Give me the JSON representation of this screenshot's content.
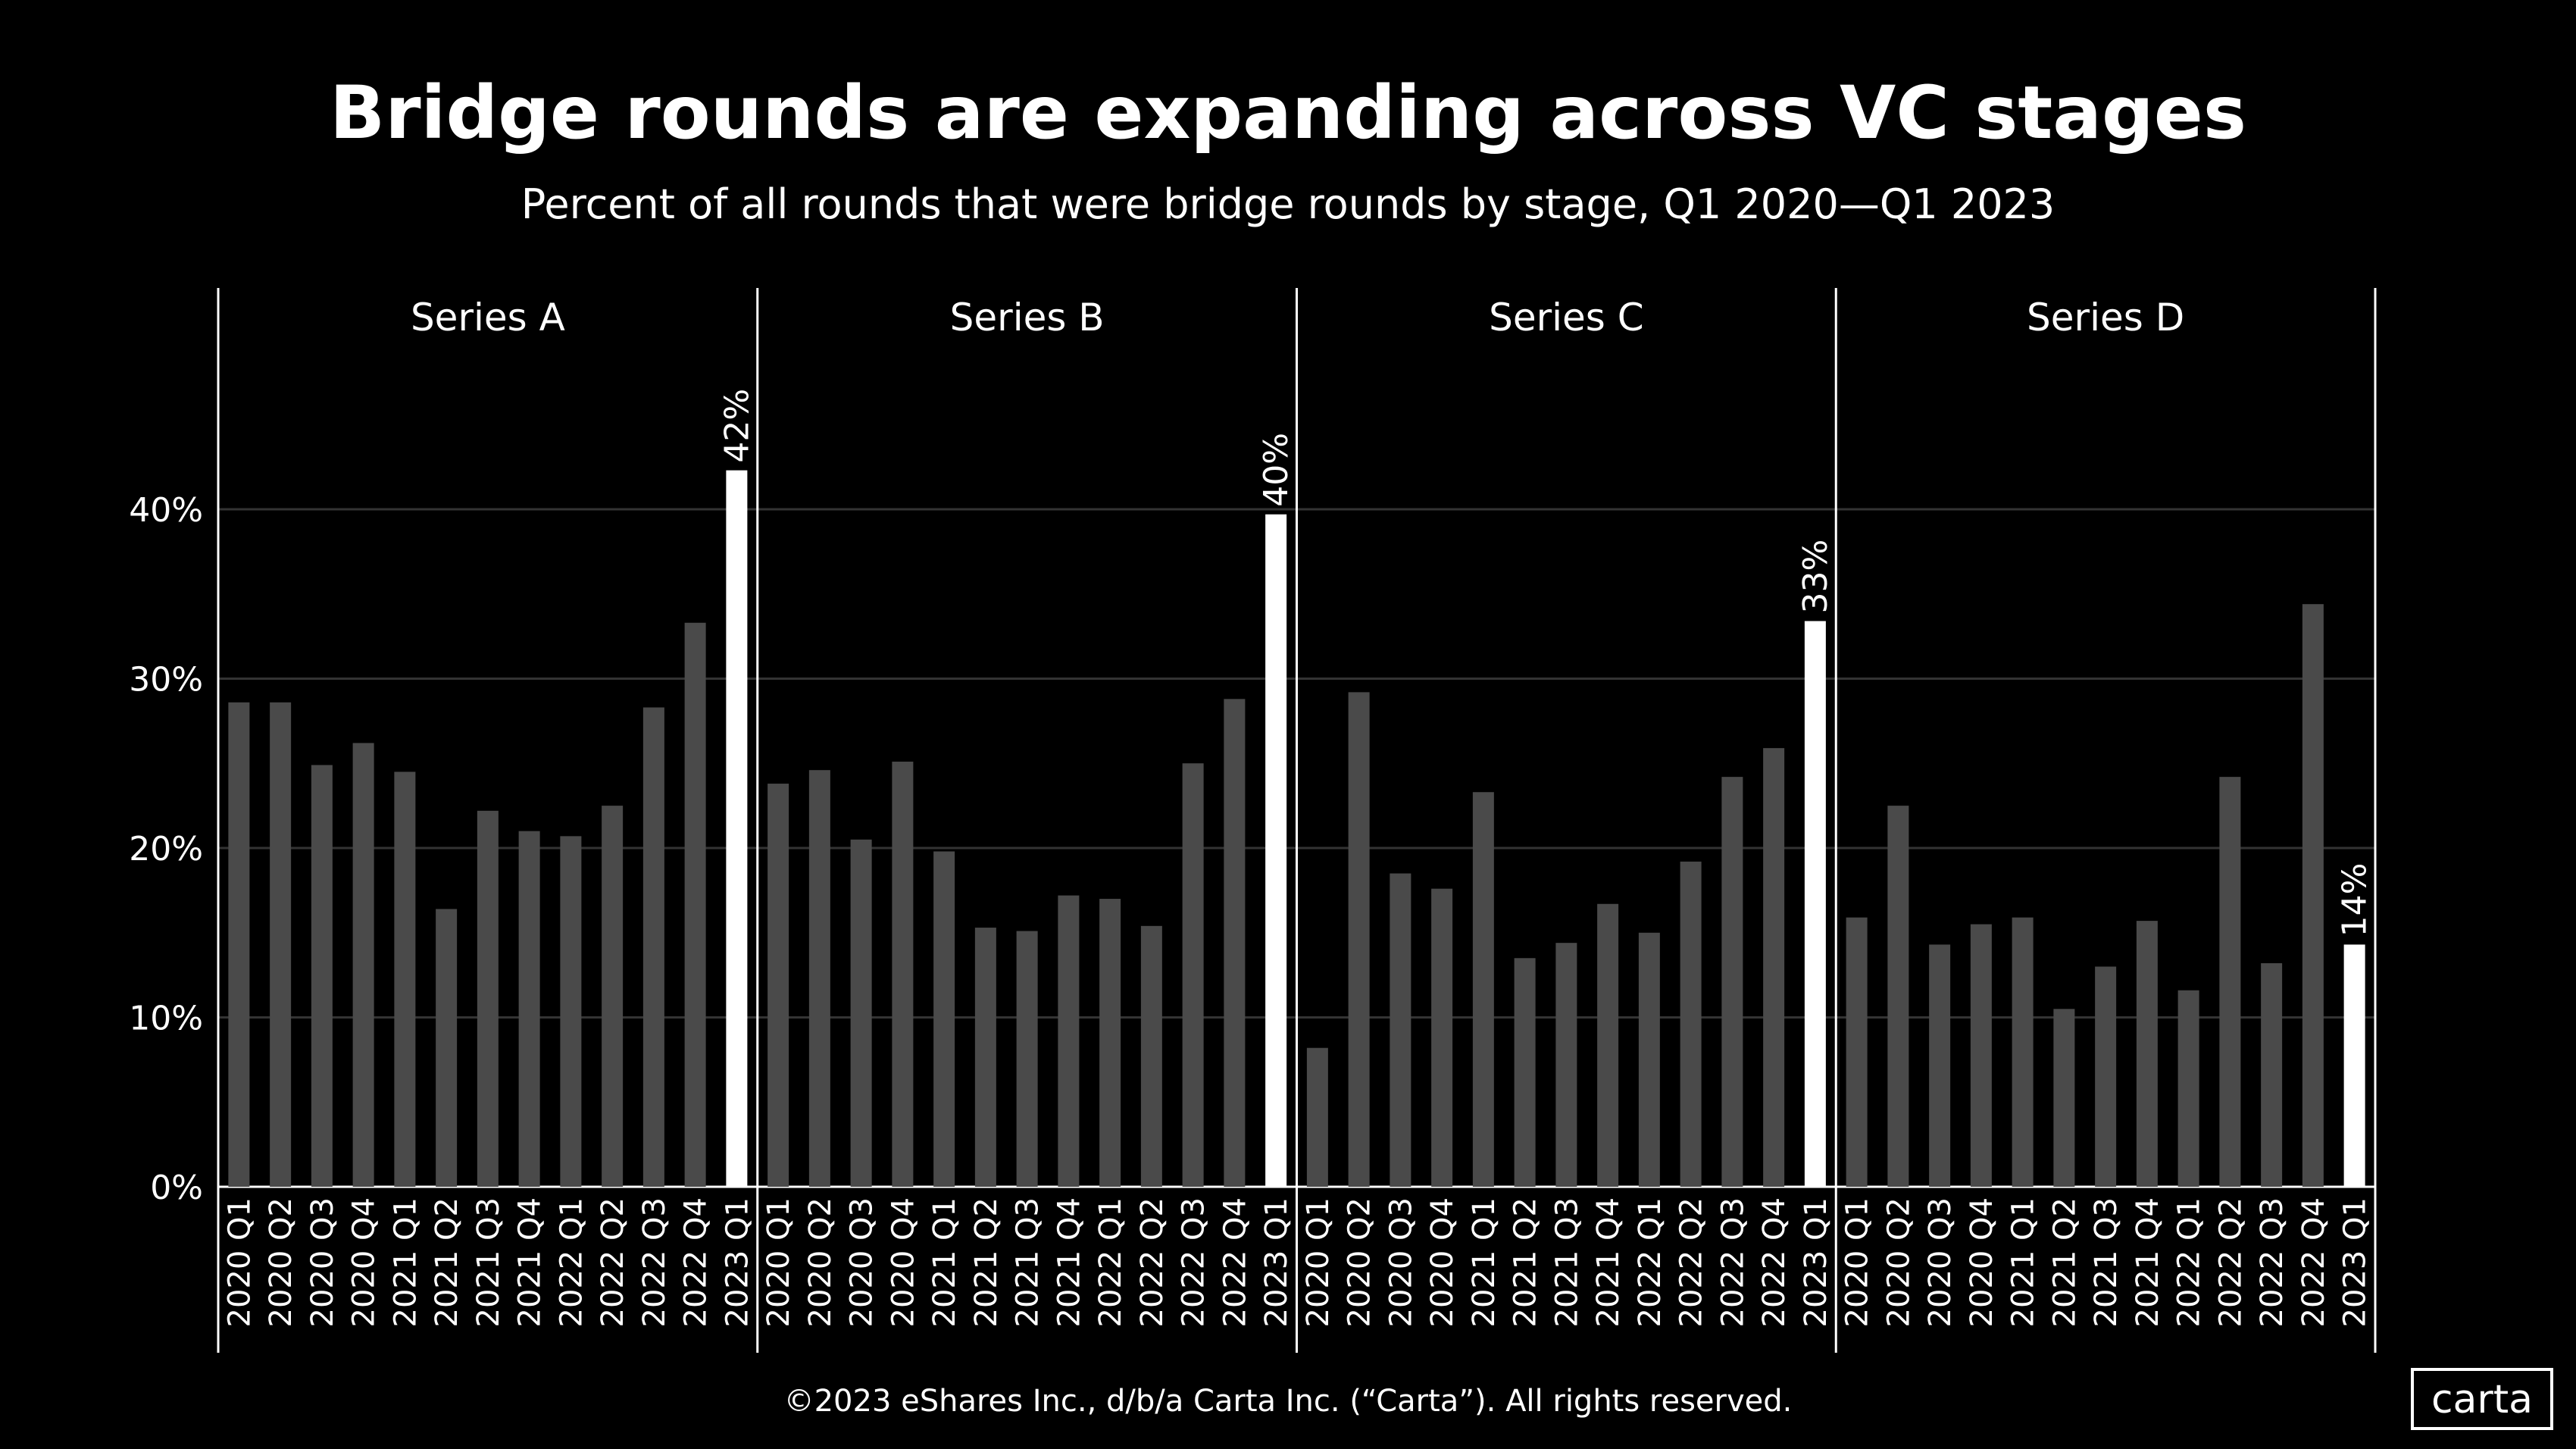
{
  "title": "Bridge rounds are expanding across VC stages",
  "subtitle": "Percent of all rounds that were bridge rounds by stage, Q1 2020—Q1 2023",
  "footer": "©2023 eShares Inc., d/b/a Carta Inc. (“Carta”). All rights reserved.",
  "logo": "carta",
  "colors": {
    "background": "#000000",
    "bar": "#4a4a4a",
    "highlight_bar": "#ffffff",
    "grid": "#333333",
    "text": "#ffffff"
  },
  "chart_data": {
    "type": "bar",
    "title": "Bridge rounds are expanding across VC stages",
    "subtitle": "Percent of all rounds that were bridge rounds by stage, Q1 2020—Q1 2023",
    "xlabel": "",
    "ylabel": "",
    "ylim": [
      0,
      48
    ],
    "yticks": [
      "0%",
      "10%",
      "20%",
      "30%",
      "40%"
    ],
    "grid": true,
    "categories": [
      "2020 Q1",
      "2020 Q2",
      "2020 Q3",
      "2020 Q4",
      "2021 Q1",
      "2021 Q2",
      "2021 Q3",
      "2021 Q4",
      "2022 Q1",
      "2022 Q2",
      "2022 Q3",
      "2022 Q4",
      "2023 Q1"
    ],
    "panels": [
      {
        "name": "Series A",
        "values": [
          28.6,
          28.6,
          24.9,
          26.2,
          24.5,
          16.4,
          22.2,
          21.0,
          20.7,
          22.5,
          28.3,
          33.3,
          42.3
        ],
        "last_label": "42%"
      },
      {
        "name": "Series B",
        "values": [
          23.8,
          24.6,
          20.5,
          25.1,
          19.8,
          15.3,
          15.1,
          17.2,
          17.0,
          15.4,
          25.0,
          28.8,
          39.7
        ],
        "last_label": "40%"
      },
      {
        "name": "Series C",
        "values": [
          8.2,
          29.2,
          18.5,
          17.6,
          23.3,
          13.5,
          14.4,
          16.7,
          15.0,
          19.2,
          24.2,
          25.9,
          33.4
        ],
        "last_label": "33%"
      },
      {
        "name": "Series D",
        "values": [
          15.9,
          22.5,
          14.3,
          15.5,
          15.9,
          10.5,
          13.0,
          15.7,
          11.6,
          24.2,
          13.2,
          34.4,
          14.3
        ],
        "last_label": "14%"
      }
    ]
  }
}
